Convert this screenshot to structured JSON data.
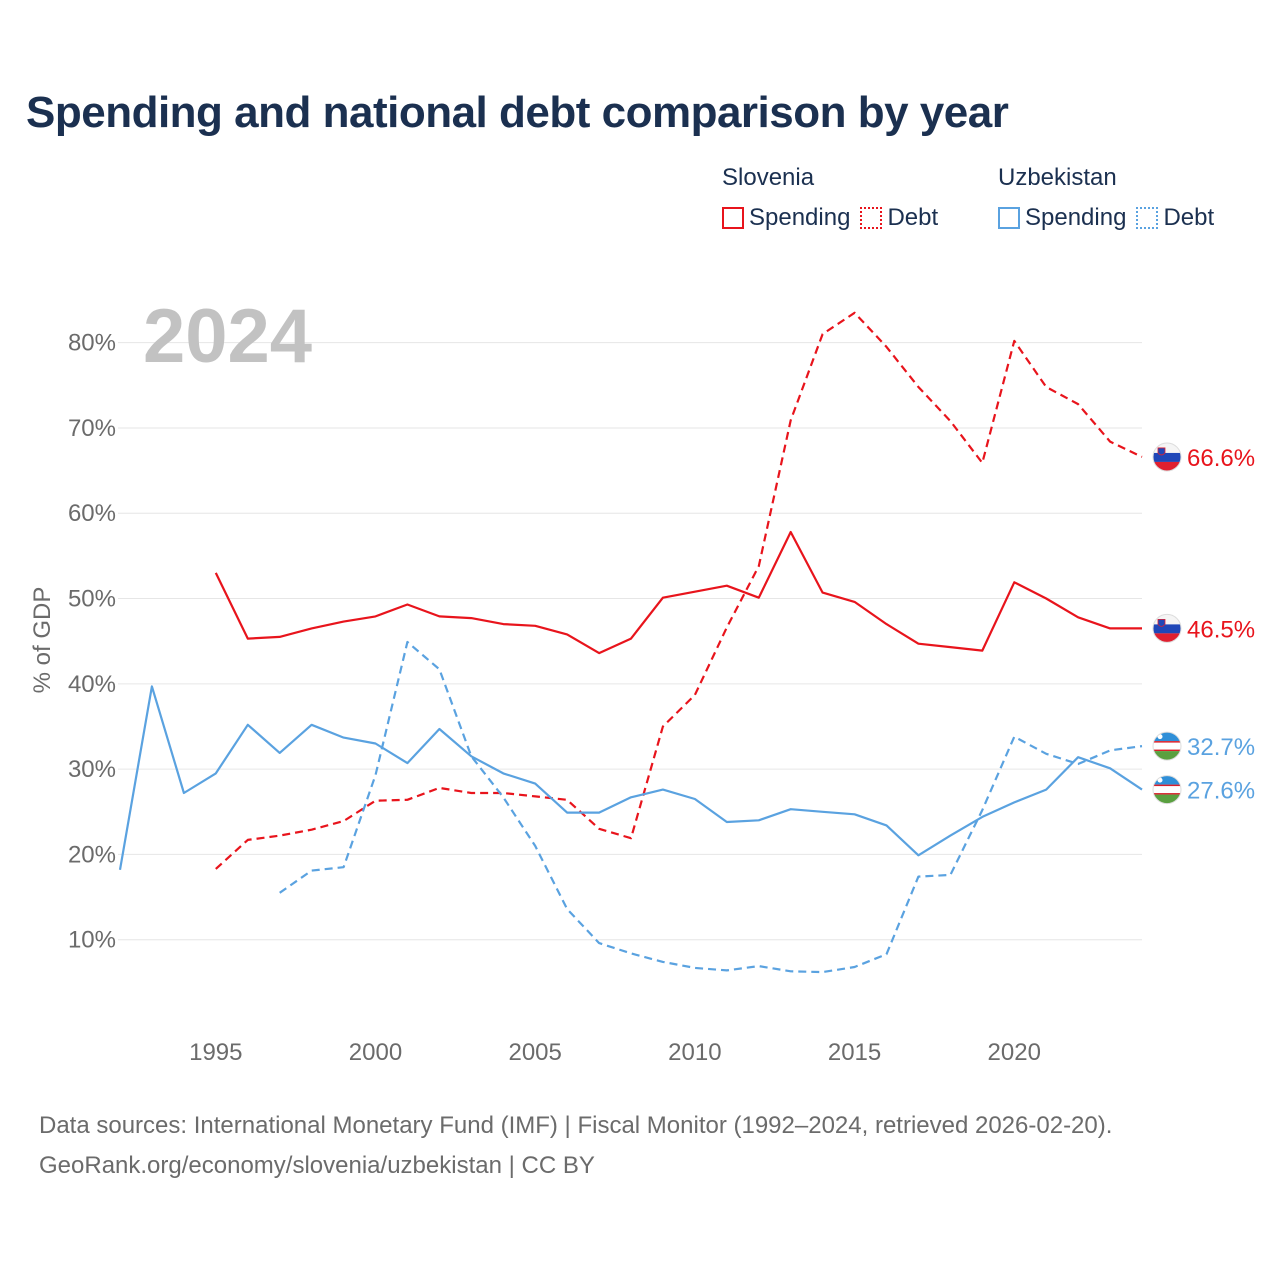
{
  "title": "Spending and national debt comparison by year",
  "legend": [
    {
      "country": "Slovenia",
      "color": "#e8141c",
      "items": [
        "Spending",
        "Debt"
      ]
    },
    {
      "country": "Uzbekistan",
      "color": "#5aa2e0",
      "items": [
        "Spending",
        "Debt"
      ]
    }
  ],
  "footer": {
    "line1": "Data sources: International Monetary Fund (IMF) | Fiscal Monitor (1992–2024, retrieved 2026-02-20).",
    "line2": "GeoRank.org/economy/slovenia/uzbekistan | CC BY"
  },
  "chart_data": {
    "type": "line",
    "title": "Spending and national debt comparison by year",
    "year_label": "2024",
    "ylabel": "% of GDP",
    "xlabel": "",
    "xlim": [
      1992,
      2024
    ],
    "ylim": [
      0,
      85
    ],
    "x_ticks": [
      1995,
      2000,
      2005,
      2010,
      2015,
      2020
    ],
    "y_ticks": [
      10,
      20,
      30,
      40,
      50,
      60,
      70,
      80
    ],
    "y_tick_labels": [
      "10%",
      "20%",
      "30%",
      "40%",
      "50%",
      "60%",
      "70%",
      "80%"
    ],
    "series": [
      {
        "name": "Slovenia Spending",
        "country": "Slovenia",
        "kind": "Spending",
        "style": "solid",
        "color": "#e8141c",
        "start_year": 1995,
        "values": [
          53.0,
          45.3,
          45.5,
          46.5,
          47.3,
          47.9,
          49.3,
          47.9,
          47.7,
          47.0,
          46.8,
          45.8,
          43.6,
          45.3,
          50.1,
          50.8,
          51.5,
          50.1,
          57.8,
          50.7,
          49.6,
          47.0,
          44.7,
          44.3,
          43.9,
          51.9,
          50.0,
          47.8,
          46.5,
          46.5
        ],
        "end_label": "46.5%"
      },
      {
        "name": "Slovenia Debt",
        "country": "Slovenia",
        "kind": "Debt",
        "style": "dashed",
        "color": "#e8141c",
        "start_year": 1995,
        "values": [
          18.3,
          21.7,
          22.2,
          22.9,
          23.9,
          26.3,
          26.4,
          27.8,
          27.2,
          27.2,
          26.8,
          26.4,
          23.0,
          21.9,
          35.0,
          38.7,
          46.6,
          53.8,
          70.9,
          81.0,
          83.5,
          79.5,
          74.8,
          70.8,
          65.9,
          80.2,
          74.8,
          72.8,
          68.4,
          66.6
        ],
        "end_label": "66.6%"
      },
      {
        "name": "Uzbekistan Spending",
        "country": "Uzbekistan",
        "kind": "Spending",
        "style": "solid",
        "color": "#5aa2e0",
        "start_year": 1992,
        "values": [
          18.2,
          39.7,
          27.2,
          29.5,
          35.2,
          31.9,
          35.2,
          33.7,
          33.0,
          30.7,
          34.7,
          31.5,
          29.5,
          28.3,
          24.9,
          24.9,
          26.7,
          27.6,
          26.5,
          23.8,
          24.0,
          25.3,
          25.0,
          24.7,
          23.4,
          19.9,
          22.2,
          24.4,
          26.1,
          27.6,
          31.4,
          30.1,
          27.6
        ],
        "end_label": "27.6%"
      },
      {
        "name": "Uzbekistan Debt",
        "country": "Uzbekistan",
        "kind": "Debt",
        "style": "dashed",
        "color": "#5aa2e0",
        "start_year": 1997,
        "values": [
          15.5,
          18.1,
          18.5,
          29.3,
          44.9,
          41.7,
          31.5,
          26.7,
          21.0,
          13.6,
          9.6,
          8.4,
          7.4,
          6.7,
          6.4,
          6.9,
          6.3,
          6.2,
          6.8,
          8.3,
          17.4,
          17.6,
          25.2,
          33.8,
          31.8,
          30.6,
          32.2,
          32.7
        ],
        "end_label": "32.7%"
      }
    ]
  }
}
